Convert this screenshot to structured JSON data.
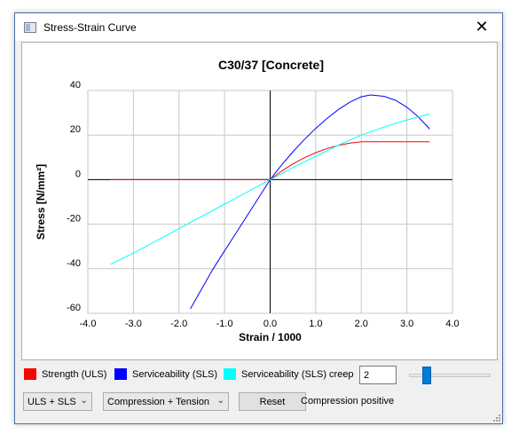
{
  "window": {
    "title": "Stress-Strain Curve",
    "close_icon": "close-icon"
  },
  "chart_data": {
    "type": "line",
    "title": "C30/37 [Concrete]",
    "xlabel": "Strain / 1000",
    "ylabel": "Stress [N/mm²]",
    "xlim": [
      -4.0,
      4.0
    ],
    "ylim": [
      -60,
      40
    ],
    "xticks": [
      "-4.0",
      "-3.0",
      "-2.0",
      "-1.0",
      "0.0",
      "1.0",
      "2.0",
      "3.0",
      "4.0"
    ],
    "yticks": [
      "40",
      "20",
      "0",
      "-20",
      "-40",
      "-60"
    ],
    "grid": true,
    "series": [
      {
        "name": "Strength (ULS)",
        "color": "#ff0000",
        "x": [
          -3.5,
          -2.0,
          -1.0,
          0.0,
          0.25,
          0.5,
          0.75,
          1.0,
          1.25,
          1.5,
          1.75,
          2.0,
          2.5,
          3.0,
          3.5
        ],
        "y": [
          0,
          0,
          0,
          0,
          3.8,
          7.1,
          9.8,
          12.1,
          14.0,
          15.4,
          16.4,
          17.0,
          17.0,
          17.0,
          17.0
        ]
      },
      {
        "name": "Serviceability (SLS)",
        "color": "#0000ff",
        "x": [
          -1.75,
          -1.5,
          -1.25,
          -1.0,
          -0.75,
          -0.5,
          -0.25,
          0.0,
          0.25,
          0.5,
          0.75,
          1.0,
          1.25,
          1.5,
          1.75,
          2.0,
          2.2,
          2.5,
          2.75,
          3.0,
          3.25,
          3.5
        ],
        "y": [
          -58,
          -49,
          -40,
          -32,
          -24,
          -16,
          -8,
          0,
          6.5,
          12.5,
          18.0,
          23.0,
          27.5,
          31.5,
          34.8,
          37.2,
          38.0,
          37.4,
          35.6,
          32.5,
          28.2,
          22.7
        ]
      },
      {
        "name": "Serviceability (SLS) creep",
        "color": "#00ffff",
        "x": [
          -3.5,
          -3.0,
          -2.0,
          -1.0,
          0.0,
          0.5,
          1.0,
          1.5,
          2.0,
          2.5,
          3.0,
          3.5
        ],
        "y": [
          -38,
          -33,
          -22,
          -11,
          0,
          5.4,
          10.5,
          15.5,
          20.0,
          23.6,
          26.8,
          29.5
        ]
      }
    ]
  },
  "controls": {
    "legend": [
      {
        "label": "Strength (ULS)",
        "color": "#ff0000"
      },
      {
        "label": "Serviceability (SLS)",
        "color": "#0000ff"
      },
      {
        "label": "Serviceability (SLS) creep",
        "color": "#00ffff"
      }
    ],
    "creep_factor_value": "2",
    "slider_fraction": 0.18,
    "limit_state_combo": "ULS + SLS",
    "region_combo": "Compression + Tension",
    "reset_label": "Reset",
    "status_text": "Compression positive"
  }
}
